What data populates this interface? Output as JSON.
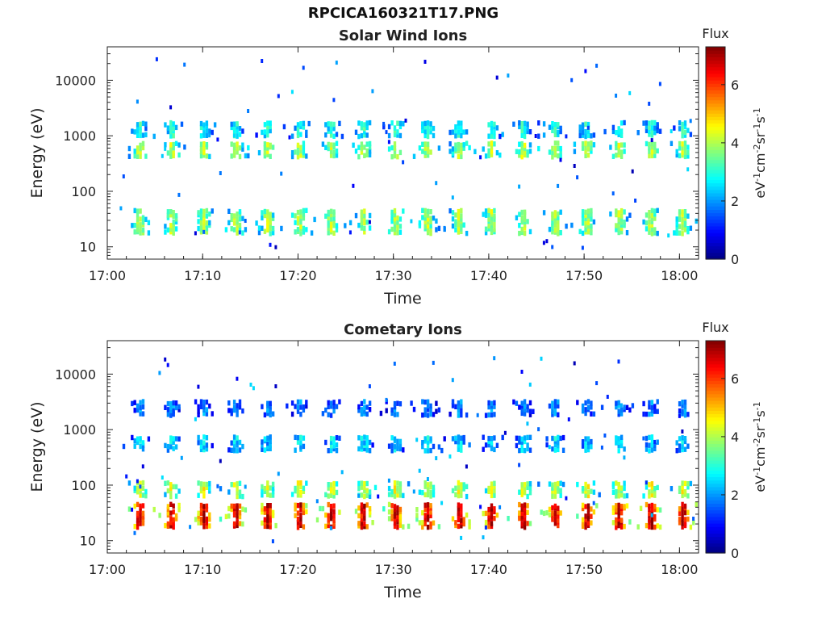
{
  "figure": {
    "title": "RPCICA160321T17.PNG"
  },
  "chart_data": [
    {
      "type": "heatmap",
      "title": "Solar Wind Ions",
      "xlabel": "Time",
      "ylabel": "Energy (eV)",
      "x_ticks": [
        "17:00",
        "17:10",
        "17:20",
        "17:30",
        "17:40",
        "17:50",
        "18:00"
      ],
      "xlim": [
        "17:00",
        "18:02"
      ],
      "y_scale": "log",
      "y_ticks": [
        "10",
        "100",
        "1000",
        "10000"
      ],
      "ylim": [
        6,
        40000
      ],
      "colorbar": {
        "label": "Flux",
        "units": "eV-1cm-2sr-1s-1",
        "ticks": [
          "0",
          "2",
          "4",
          "6"
        ],
        "range": [
          0,
          7.3
        ],
        "colormap": "jet"
      },
      "cycle_period_minutes": 3.35,
      "band_energies_eV": [
        30,
        600,
        1400
      ],
      "band_flux_levels": [
        3.5,
        3.6,
        2.6
      ]
    },
    {
      "type": "heatmap",
      "title": "Cometary Ions",
      "xlabel": "Time",
      "ylabel": "Energy (eV)",
      "x_ticks": [
        "17:00",
        "17:10",
        "17:20",
        "17:30",
        "17:40",
        "17:50",
        "18:00"
      ],
      "xlim": [
        "17:00",
        "18:02"
      ],
      "y_scale": "log",
      "y_ticks": [
        "10",
        "100",
        "1000",
        "10000"
      ],
      "ylim": [
        6,
        40000
      ],
      "colorbar": {
        "label": "Flux",
        "units": "eV-1cm-2sr-1s-1",
        "ticks": [
          "0",
          "2",
          "4",
          "6"
        ],
        "range": [
          0,
          7.3
        ],
        "colormap": "jet"
      },
      "cycle_period_minutes": 3.35,
      "band_energies_eV": [
        30,
        90,
        600,
        2600
      ],
      "band_flux_levels": [
        6.0,
        3.8,
        2.2,
        1.6
      ]
    }
  ]
}
